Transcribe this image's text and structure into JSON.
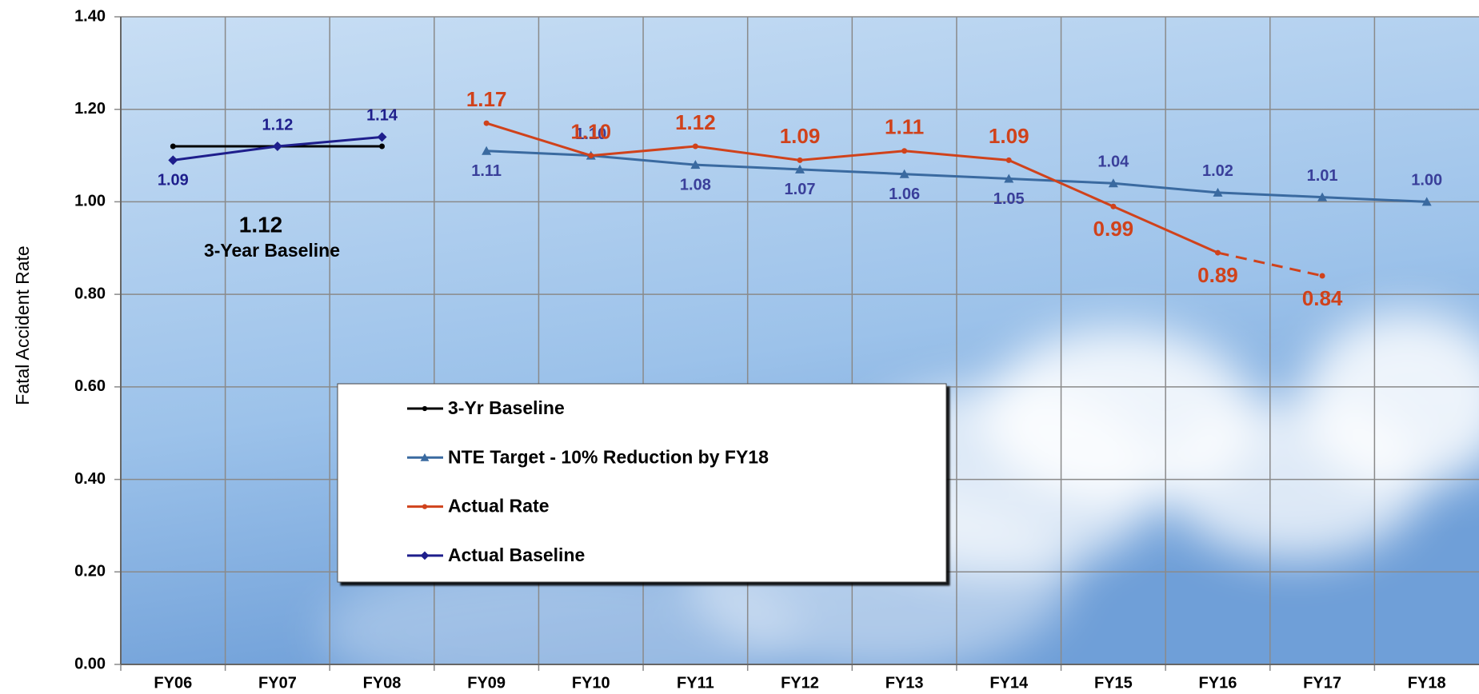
{
  "chart_data": {
    "type": "line",
    "y_axis_label": "Fatal Accident Rate",
    "categories": [
      "FY06",
      "FY07",
      "FY08",
      "FY09",
      "FY10",
      "FY11",
      "FY12",
      "FY13",
      "FY14",
      "FY15",
      "FY16",
      "FY17",
      "FY18"
    ],
    "series": [
      {
        "name": "3-Yr Baseline",
        "color": "#000000",
        "marker": "dot",
        "values": [
          1.12,
          1.12,
          1.12,
          null,
          null,
          null,
          null,
          null,
          null,
          null,
          null,
          null,
          null
        ]
      },
      {
        "name": "NTE Target - 10% Reduction by FY18",
        "color": "#3a6aa0",
        "label_color": "#3a3f9a",
        "marker": "triangle",
        "values": [
          null,
          null,
          null,
          1.11,
          1.1,
          1.08,
          1.07,
          1.06,
          1.05,
          1.04,
          1.02,
          1.01,
          1.0
        ],
        "value_labels": [
          null,
          null,
          null,
          "1.11",
          "1.10",
          "1.08",
          "1.07",
          "1.06",
          "1.05",
          "1.04",
          "1.02",
          "1.01",
          "1.00"
        ]
      },
      {
        "name": "Actual Rate",
        "color": "#d0421b",
        "label_color": "#d0421b",
        "marker": "dot",
        "dash_from": "FY16",
        "values": [
          null,
          null,
          null,
          1.17,
          1.1,
          1.12,
          1.09,
          1.11,
          1.09,
          0.99,
          0.89,
          0.84,
          null
        ],
        "value_labels": [
          null,
          null,
          null,
          "1.17",
          "1.10",
          "1.12",
          "1.09",
          "1.11",
          "1.09",
          "0.99",
          "0.89",
          "0.84",
          null
        ]
      },
      {
        "name": "Actual Baseline",
        "color": "#1e1e8c",
        "label_color": "#1e1e8c",
        "marker": "diamond",
        "values": [
          1.09,
          1.12,
          1.14,
          null,
          null,
          null,
          null,
          null,
          null,
          null,
          null,
          null,
          null
        ],
        "value_labels": [
          "1.09",
          "1.12",
          "1.14",
          null,
          null,
          null,
          null,
          null,
          null,
          null,
          null,
          null,
          null
        ]
      }
    ],
    "annotations": [
      {
        "text": "1.12"
      },
      {
        "text": "3-Year Baseline"
      }
    ],
    "ylim": [
      0,
      1.4
    ],
    "yticks": [
      {
        "value": 0,
        "label": "0.00"
      },
      {
        "value": 0.2,
        "label": "0.20"
      },
      {
        "value": 0.4,
        "label": "0.40"
      },
      {
        "value": 0.6,
        "label": "0.60"
      },
      {
        "value": 0.8,
        "label": "0.80"
      },
      {
        "value": 1.0,
        "label": "1.00"
      },
      {
        "value": 1.2,
        "label": "1.20"
      },
      {
        "value": 1.4,
        "label": "1.40"
      }
    ],
    "grid": true
  }
}
